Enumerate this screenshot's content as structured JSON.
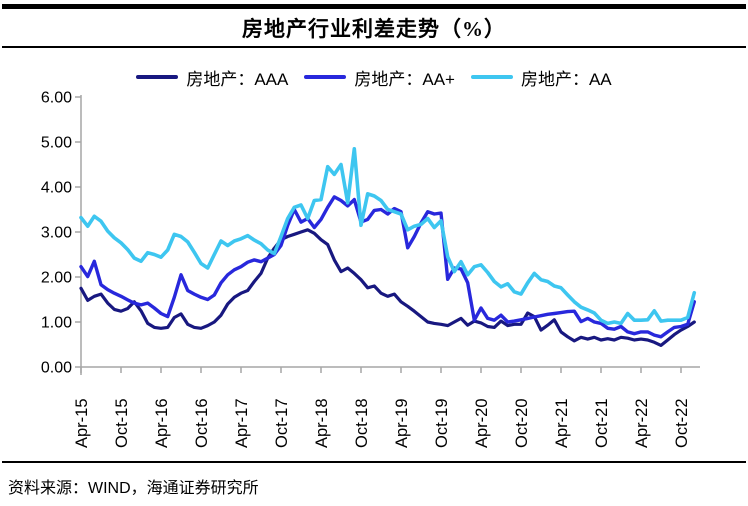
{
  "header": {
    "title": "房地产行业利差走势（%）"
  },
  "legend": [
    {
      "key": "aaa",
      "label": "房地产：AAA",
      "color": "#181880"
    },
    {
      "key": "aa-plus",
      "label": "房地产：AA+",
      "color": "#2828DC"
    },
    {
      "key": "aa",
      "label": "房地产：AA",
      "color": "#3EC6F0"
    }
  ],
  "footer": {
    "source": "资料来源：WIND，海通证券研究所"
  },
  "chart_data": {
    "type": "line",
    "title": "房地产行业利差走势（%）",
    "grid": false,
    "legend_position": "top-center",
    "axis_color": "#A6A6A6",
    "ylim": [
      0,
      6
    ],
    "y_tick_labels": [
      "6.00",
      "5.00",
      "4.00",
      "3.00",
      "2.00",
      "1.00",
      "0.00"
    ],
    "x_frequency": "monthly",
    "x_start": "Apr-2015",
    "x_end": "Dec-2022",
    "x_tick_every_months": 6,
    "x_tick_labels": [
      "Apr-15",
      "Oct-15",
      "Apr-16",
      "Oct-16",
      "Apr-17",
      "Oct-17",
      "Apr-18",
      "Oct-18",
      "Apr-19",
      "Oct-19",
      "Apr-20",
      "Oct-20",
      "Apr-21",
      "Oct-21",
      "Apr-22",
      "Oct-22"
    ],
    "series": [
      {
        "name": "房地产：AAA",
        "color": "#181880",
        "width": 3.2,
        "values": [
          1.75,
          1.48,
          1.57,
          1.62,
          1.42,
          1.28,
          1.24,
          1.3,
          1.45,
          1.25,
          0.97,
          0.88,
          0.86,
          0.88,
          1.1,
          1.18,
          0.95,
          0.88,
          0.86,
          0.92,
          1.0,
          1.15,
          1.4,
          1.55,
          1.64,
          1.7,
          1.9,
          2.08,
          2.42,
          2.64,
          2.83,
          2.9,
          2.95,
          3.0,
          3.05,
          2.97,
          2.83,
          2.72,
          2.38,
          2.12,
          2.2,
          2.08,
          1.94,
          1.76,
          1.8,
          1.64,
          1.57,
          1.62,
          1.45,
          1.35,
          1.24,
          1.12,
          1.0,
          0.97,
          0.95,
          0.92,
          1.0,
          1.08,
          0.93,
          1.02,
          0.98,
          0.9,
          0.88,
          1.02,
          0.92,
          0.95,
          0.95,
          1.2,
          1.12,
          0.82,
          0.93,
          1.05,
          0.78,
          0.67,
          0.58,
          0.66,
          0.62,
          0.66,
          0.6,
          0.63,
          0.6,
          0.66,
          0.64,
          0.6,
          0.62,
          0.6,
          0.55,
          0.48,
          0.6,
          0.72,
          0.82,
          0.9,
          1.0
        ]
      },
      {
        "name": "房地产：AA+",
        "color": "#2828DC",
        "width": 3.4,
        "values": [
          2.23,
          2.01,
          2.35,
          1.83,
          1.72,
          1.64,
          1.57,
          1.49,
          1.42,
          1.38,
          1.42,
          1.31,
          1.19,
          1.12,
          1.55,
          2.05,
          1.7,
          1.62,
          1.55,
          1.5,
          1.6,
          1.87,
          2.05,
          2.16,
          2.23,
          2.33,
          2.38,
          2.34,
          2.42,
          2.5,
          2.7,
          3.15,
          3.5,
          3.22,
          3.3,
          3.1,
          3.28,
          3.55,
          3.78,
          3.7,
          3.58,
          3.72,
          3.22,
          3.28,
          3.48,
          3.5,
          3.4,
          3.52,
          3.45,
          2.65,
          2.9,
          3.2,
          3.45,
          3.4,
          3.42,
          1.95,
          2.2,
          2.18,
          1.87,
          1.04,
          1.31,
          1.08,
          1.04,
          1.15,
          1.0,
          1.02,
          1.05,
          1.08,
          1.11,
          1.14,
          1.17,
          1.19,
          1.21,
          1.23,
          1.24,
          1.01,
          1.08,
          1.0,
          0.97,
          0.86,
          0.84,
          0.9,
          0.78,
          0.74,
          0.78,
          0.78,
          0.71,
          0.67,
          0.78,
          0.88,
          0.9,
          0.95,
          1.45
        ]
      },
      {
        "name": "房地产：AA",
        "color": "#3EC6F0",
        "width": 3.6,
        "values": [
          3.32,
          3.13,
          3.35,
          3.24,
          3.02,
          2.87,
          2.76,
          2.61,
          2.42,
          2.35,
          2.54,
          2.5,
          2.44,
          2.6,
          2.95,
          2.9,
          2.78,
          2.55,
          2.3,
          2.2,
          2.5,
          2.8,
          2.7,
          2.8,
          2.85,
          2.92,
          2.82,
          2.74,
          2.6,
          2.52,
          2.9,
          3.3,
          3.55,
          3.6,
          3.3,
          3.7,
          3.72,
          4.45,
          4.28,
          4.5,
          3.65,
          4.85,
          3.15,
          3.85,
          3.8,
          3.7,
          3.5,
          3.45,
          3.4,
          3.05,
          3.13,
          3.17,
          3.3,
          3.1,
          3.25,
          2.45,
          2.12,
          2.34,
          2.05,
          2.23,
          2.27,
          2.1,
          1.9,
          1.78,
          1.85,
          1.67,
          1.62,
          1.87,
          2.08,
          1.94,
          1.9,
          1.8,
          1.76,
          1.6,
          1.45,
          1.33,
          1.27,
          1.2,
          1.04,
          0.97,
          1.0,
          0.97,
          1.19,
          1.04,
          1.04,
          1.05,
          1.25,
          1.02,
          1.04,
          1.04,
          1.04,
          1.1,
          1.65
        ]
      }
    ]
  }
}
